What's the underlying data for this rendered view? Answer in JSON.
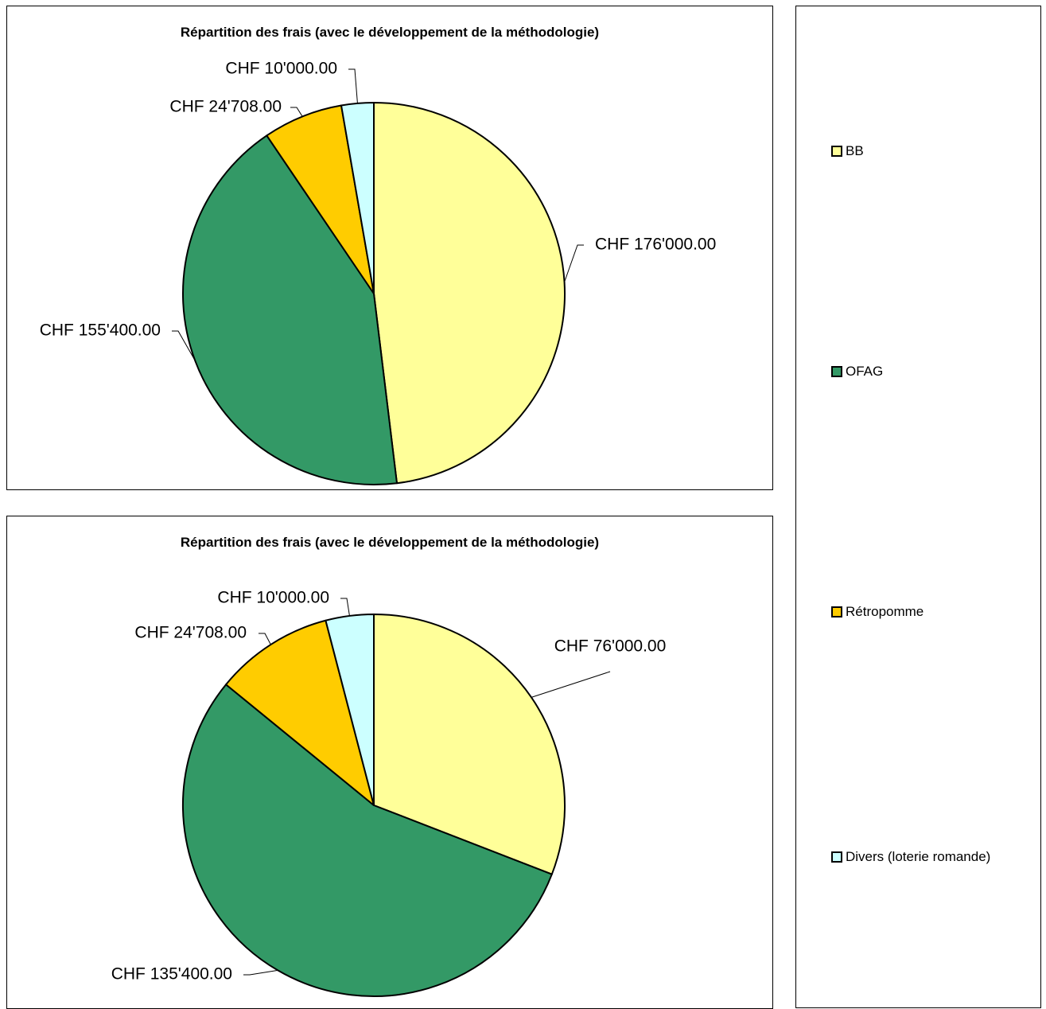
{
  "colors": {
    "BB": "#ffff99",
    "OFAG": "#339966",
    "Rétropomme": "#ffcc00",
    "Divers (loterie romande)": "#ccffff"
  },
  "legend": {
    "items": [
      "BB",
      "OFAG",
      "Rétropomme",
      "Divers (loterie romande)"
    ]
  },
  "chart_data": [
    {
      "type": "pie",
      "title": "Répartition des frais (avec le développement de la méthodologie)",
      "categories": [
        "BB",
        "OFAG",
        "Rétropomme",
        "Divers (loterie romande)"
      ],
      "values": [
        176000,
        155400,
        24708,
        10000
      ],
      "labels": [
        "CHF 176'000.00",
        "CHF 155'400.00",
        "CHF 24'708.00",
        "CHF 10'000.00"
      ],
      "legend_position": "right"
    },
    {
      "type": "pie",
      "title": "Répartition des frais (avec le développement de la méthodologie)",
      "categories": [
        "BB",
        "OFAG",
        "Rétropomme",
        "Divers (loterie romande)"
      ],
      "values": [
        76000,
        135400,
        24708,
        10000
      ],
      "labels": [
        "CHF 76'000.00",
        "CHF 135'400.00",
        "CHF 24'708.00",
        "CHF 10'000.00"
      ],
      "legend_position": "right"
    }
  ]
}
